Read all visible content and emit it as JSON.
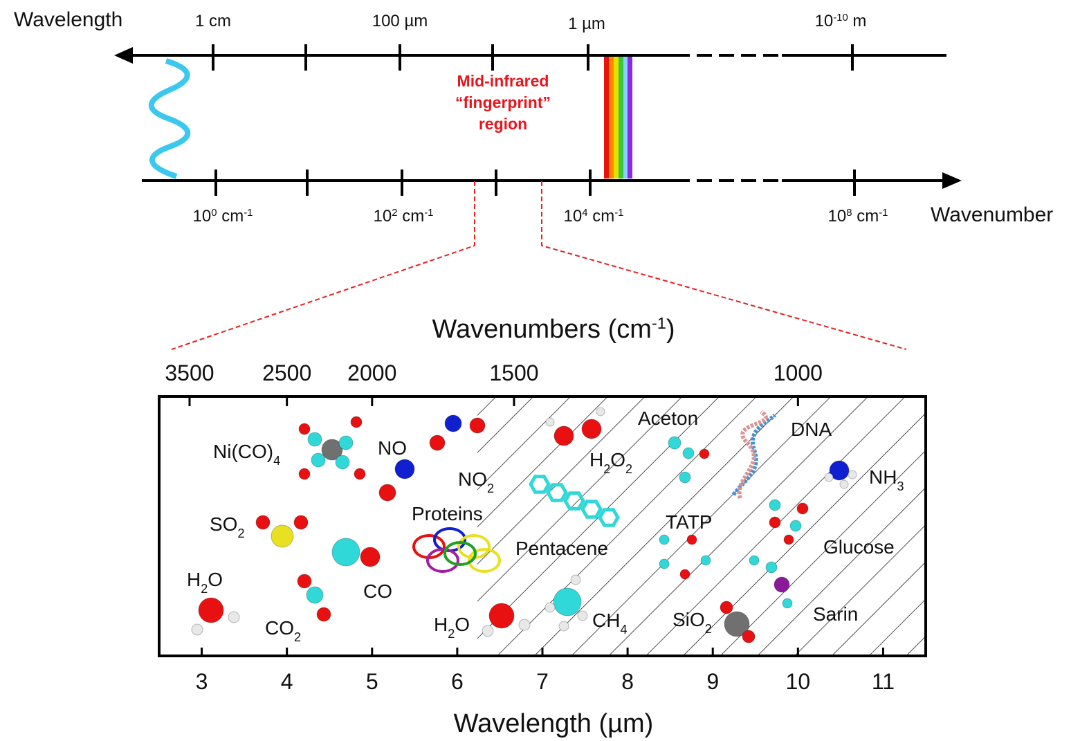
{
  "spectrum": {
    "wavelength_label": "Wavelength",
    "wavenumber_label": "Wavenumber",
    "wavelength_ticks": [
      {
        "text": "1 cm"
      },
      {
        "text": "100 µm"
      },
      {
        "text": "1 µm"
      },
      {
        "base": "10",
        "sup": "-10",
        "unit": " m"
      }
    ],
    "wavenumber_ticks": [
      {
        "base": "10",
        "sup": "0",
        "unit": " cm",
        "unit_sup": "-1"
      },
      {
        "base": "10",
        "sup": "2",
        "unit": " cm",
        "unit_sup": "-1"
      },
      {
        "base": "10",
        "sup": "4",
        "unit": " cm",
        "unit_sup": "-1"
      },
      {
        "base": "10",
        "sup": "8",
        "unit": " cm",
        "unit_sup": "-1"
      }
    ],
    "region_label": [
      "Mid-infrared",
      "“fingerprint”",
      "region"
    ]
  },
  "detail": {
    "top_axis_title": {
      "text": "Wavenumbers (cm",
      "sup": "-1",
      "close": ")"
    },
    "top_ticks": [
      3500,
      2500,
      2000,
      1500,
      1000
    ],
    "bottom_ticks": [
      3,
      4,
      5,
      6,
      7,
      8,
      9,
      10,
      11
    ],
    "xlim": [
      2.5,
      11.5
    ],
    "bottom_axis_title": "Wavelength (µm)",
    "molecules": [
      {
        "segments": [
          {
            "text": "Ni(CO)"
          },
          {
            "sub": "4"
          }
        ]
      },
      {
        "segments": [
          {
            "text": "NO"
          }
        ]
      },
      {
        "segments": [
          {
            "text": "NO"
          },
          {
            "sub": "2"
          }
        ]
      },
      {
        "segments": [
          {
            "text": "H"
          },
          {
            "sub": "2"
          },
          {
            "text": "O"
          },
          {
            "sub": "2"
          }
        ]
      },
      {
        "segments": [
          {
            "text": "Aceton"
          }
        ]
      },
      {
        "segments": [
          {
            "text": "DNA"
          }
        ]
      },
      {
        "segments": [
          {
            "text": "NH"
          },
          {
            "sub": "3"
          }
        ]
      },
      {
        "segments": [
          {
            "text": "SO"
          },
          {
            "sub": "2"
          }
        ]
      },
      {
        "segments": [
          {
            "text": "Proteins"
          }
        ]
      },
      {
        "segments": [
          {
            "text": "Pentacene"
          }
        ]
      },
      {
        "segments": [
          {
            "text": "TATP"
          }
        ]
      },
      {
        "segments": [
          {
            "text": "Glucose"
          }
        ]
      },
      {
        "segments": [
          {
            "text": "H"
          },
          {
            "sub": "2"
          },
          {
            "text": "O"
          }
        ]
      },
      {
        "segments": [
          {
            "text": "CO"
          }
        ]
      },
      {
        "segments": [
          {
            "text": "CO"
          },
          {
            "sub": "2"
          }
        ]
      },
      {
        "segments": [
          {
            "text": "H"
          },
          {
            "sub": "2"
          },
          {
            "text": "O"
          }
        ]
      },
      {
        "segments": [
          {
            "text": "CH"
          },
          {
            "sub": "4"
          }
        ]
      },
      {
        "segments": [
          {
            "text": "SiO"
          },
          {
            "sub": "2"
          }
        ]
      },
      {
        "segments": [
          {
            "text": "Sarin"
          }
        ]
      }
    ]
  }
}
